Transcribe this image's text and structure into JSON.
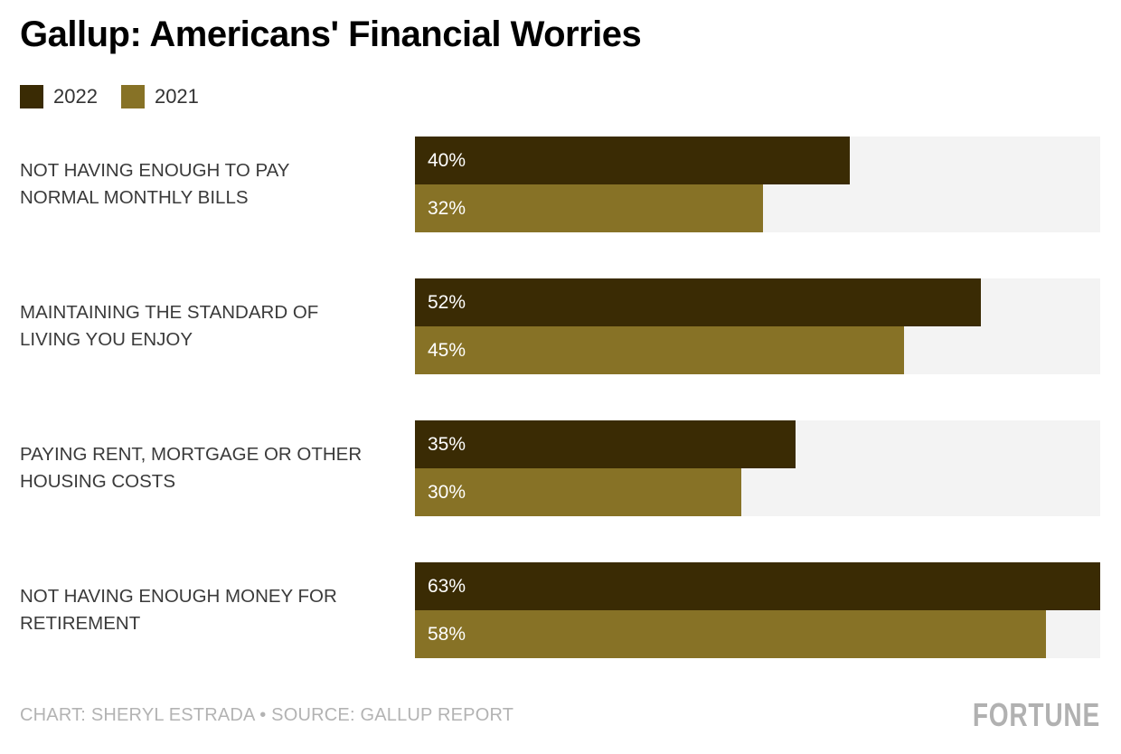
{
  "title": "Gallup: Americans' Financial Worries",
  "chart_data": {
    "type": "bar",
    "orientation": "horizontal",
    "title": "Gallup: Americans' Financial Worries",
    "categories": [
      "NOT HAVING ENOUGH TO PAY NORMAL MONTHLY BILLS",
      "MAINTAINING THE STANDARD OF LIVING YOU ENJOY",
      "PAYING RENT, MORTGAGE OR OTHER HOUSING COSTS",
      "NOT HAVING ENOUGH MONEY FOR RETIREMENT"
    ],
    "series": [
      {
        "name": "2022",
        "color": "#3a2b04",
        "values": [
          40,
          52,
          35,
          63
        ]
      },
      {
        "name": "2021",
        "color": "#877226",
        "values": [
          32,
          45,
          30,
          58
        ]
      }
    ],
    "value_suffix": "%",
    "xlim": [
      0,
      63
    ],
    "legend_position": "top-left",
    "grid": false,
    "track_color": "#f3f3f3",
    "value_label_color": "#ffffff"
  },
  "footer": {
    "credit": "CHART: SHERYL ESTRADA • SOURCE: GALLUP REPORT",
    "brand": "FORTUNE"
  }
}
